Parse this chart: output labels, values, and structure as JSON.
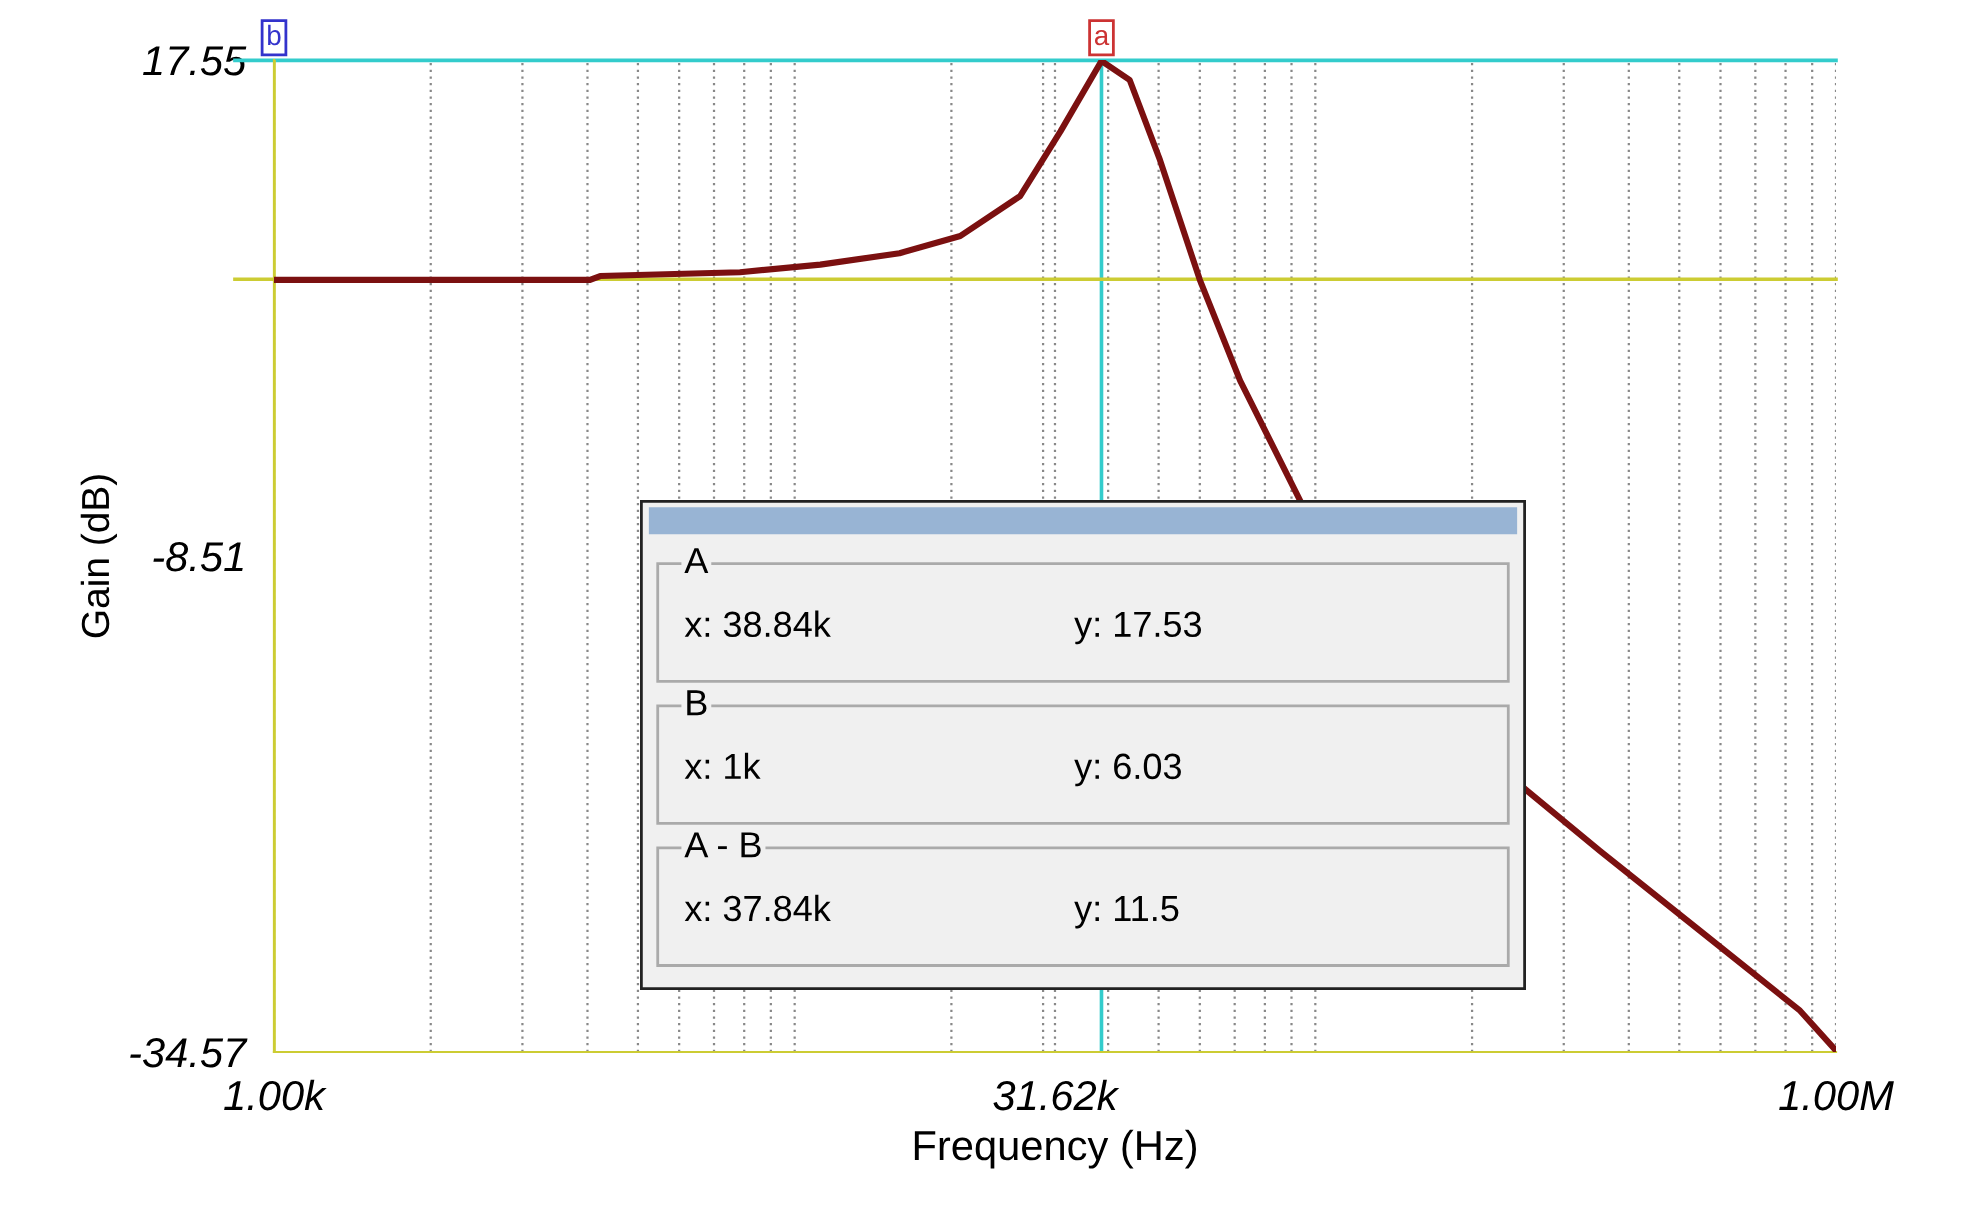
{
  "chart_data": {
    "type": "line",
    "xlabel": "Frequency (Hz)",
    "ylabel": "Gain (dB)",
    "log": "x",
    "x": [
      1000,
      4046,
      4230,
      7850,
      11200,
      15900,
      20800,
      27100,
      32400,
      38840,
      44000,
      50300,
      60000,
      71700,
      93500,
      150000,
      254000,
      352000,
      548000,
      853000,
      1000000
    ],
    "series": [
      {
        "color": "#7b1010",
        "values": [
          6.0,
          6.0,
          6.2,
          6.4,
          6.8,
          7.4,
          8.3,
          10.4,
          13.8,
          17.5,
          16.5,
          12.3,
          6.0,
          0.7,
          -5.6,
          null,
          -20.8,
          -24.0,
          -28.2,
          -32.4,
          -34.5
        ]
      }
    ],
    "xlim": [
      1000,
      1000000
    ],
    "ylim": [
      -34.57,
      17.55
    ],
    "xticks": [
      {
        "value": 1000,
        "label": "1.00k"
      },
      {
        "value": 2000,
        "label": null
      },
      {
        "value": 3000,
        "label": null
      },
      {
        "value": 4000,
        "label": null
      },
      {
        "value": 5000,
        "label": null
      },
      {
        "value": 6000,
        "label": null
      },
      {
        "value": 7000,
        "label": null
      },
      {
        "value": 8000,
        "label": null
      },
      {
        "value": 9000,
        "label": null
      },
      {
        "value": 10000,
        "label": null
      },
      {
        "value": 20000,
        "label": null
      },
      {
        "value": 30000,
        "label": null
      },
      {
        "value": 31620,
        "label": "31.62k"
      },
      {
        "value": 40000,
        "label": null
      },
      {
        "value": 50000,
        "label": null
      },
      {
        "value": 60000,
        "label": null
      },
      {
        "value": 70000,
        "label": null
      },
      {
        "value": 80000,
        "label": null
      },
      {
        "value": 90000,
        "label": null
      },
      {
        "value": 100000,
        "label": null
      },
      {
        "value": 200000,
        "label": null
      },
      {
        "value": 300000,
        "label": null
      },
      {
        "value": 400000,
        "label": null
      },
      {
        "value": 500000,
        "label": null
      },
      {
        "value": 600000,
        "label": null
      },
      {
        "value": 700000,
        "label": null
      },
      {
        "value": 800000,
        "label": null
      },
      {
        "value": 900000,
        "label": null
      },
      {
        "value": 1000000,
        "label": "1.00M"
      }
    ],
    "yticks": [
      -34.57,
      -8.51,
      17.55
    ],
    "grid": "x",
    "ref_lines": [
      {
        "axis": "x",
        "value": 38840,
        "label": "a",
        "color": "#33cccc"
      },
      {
        "axis": "y",
        "value": 17.53,
        "color": "#33cccc"
      },
      {
        "axis": "x",
        "value": 1000,
        "label": "b",
        "color": "#cccc33"
      },
      {
        "axis": "y",
        "value": 6.03,
        "color": "#cccc33"
      }
    ],
    "annotations": [
      "A",
      "x: 38.84k",
      "y: 17.53",
      "B",
      "x: 1k",
      "y: 6.03",
      "A - B",
      "x: 37.84k",
      "y: 11.5"
    ]
  }
}
